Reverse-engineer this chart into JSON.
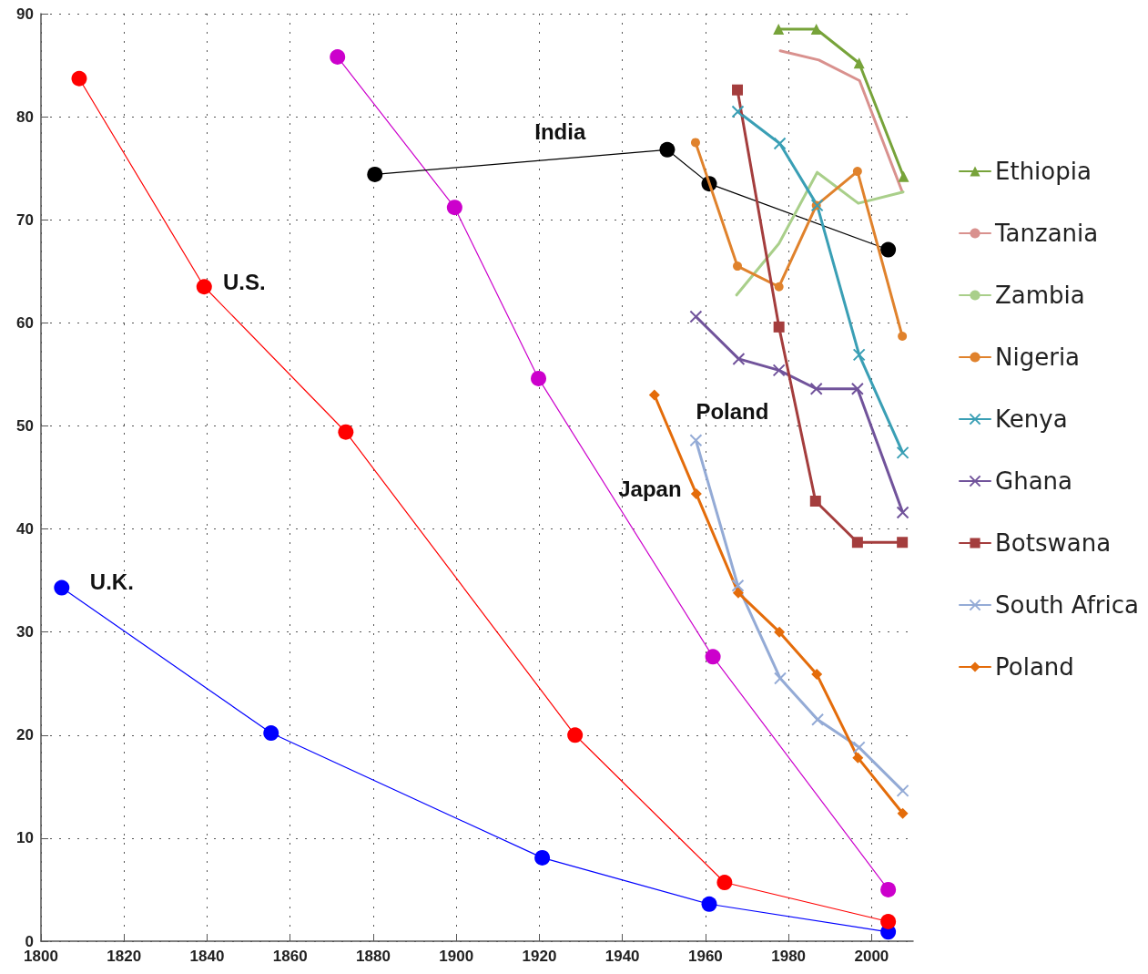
{
  "chart_data": {
    "type": "line",
    "xlim": [
      1800,
      2010
    ],
    "xticks": [
      1800,
      1820,
      1840,
      1860,
      1880,
      1900,
      1920,
      1940,
      1960,
      1980,
      2000
    ],
    "ylim": [
      0,
      90
    ],
    "yticks": [
      0,
      10,
      20,
      30,
      40,
      50,
      60,
      70,
      80,
      90
    ],
    "grid": true,
    "legend": "right",
    "line_style": "solid",
    "annotations": [
      {
        "text": "India",
        "x": 1925,
        "y": 75.9
      },
      {
        "text": "U.S.",
        "x": 1839.3,
        "y": 63.5
      },
      {
        "text": "U.K.",
        "x": 1805,
        "y": 34.3
      },
      {
        "text": "Japan",
        "x": 1957.8,
        "y": 43.4
      },
      {
        "text": "Poland",
        "x": 1957.7,
        "y": 48.6
      }
    ],
    "series": [
      {
        "color": "#0000ff",
        "marker": "circle",
        "x": [
          1805,
          1855.4,
          1920.7,
          1960.9,
          2004
        ],
        "values": [
          34.3,
          20.2,
          8.1,
          3.6,
          0.9
        ]
      },
      {
        "color": "#ff0000",
        "marker": "circle",
        "x": [
          1809.2,
          1839.3,
          1873.4,
          1928.6,
          1964.6,
          2004
        ],
        "values": [
          83.7,
          63.5,
          49.4,
          20.0,
          5.7,
          1.9
        ]
      },
      {
        "color": "#cc00cc",
        "marker": "circle",
        "x": [
          1871.4,
          1899.6,
          1919.8,
          1961.8,
          2004
        ],
        "values": [
          85.8,
          71.2,
          54.6,
          27.6,
          5.0
        ]
      },
      {
        "color": "#000000",
        "marker": "circle",
        "x": [
          1880.4,
          1950.8,
          1960.9,
          2004
        ],
        "values": [
          74.4,
          76.8,
          73.5,
          67.1
        ]
      },
      {
        "name": "Ethiopia",
        "color": "#77a33a",
        "marker": "triangle",
        "x": [
          1977.6,
          1986.7,
          1997,
          2007.7
        ],
        "values": [
          88.5,
          88.5,
          85.2,
          74.2
        ]
      },
      {
        "name": "Tanzania",
        "color": "#d9918e",
        "marker": "none",
        "x": [
          1978,
          1987.3,
          1997.1,
          2007.4
        ],
        "values": [
          86.4,
          85.5,
          83.5,
          72.7
        ]
      },
      {
        "name": "Zambia",
        "color": "#a9cf8a",
        "marker": "none",
        "x": [
          1967.5,
          1977.7,
          1986.9,
          1996.8,
          2007.6
        ],
        "values": [
          62.7,
          67.7,
          74.6,
          71.6,
          72.7
        ]
      },
      {
        "name": "Nigeria",
        "color": "#e0822c",
        "marker": "circle",
        "x": [
          1957.6,
          1967.7,
          1977.7,
          1986.7,
          1996.6,
          2007.4
        ],
        "values": [
          77.5,
          65.5,
          63.5,
          71.4,
          74.7,
          58.7
        ]
      },
      {
        "name": "Kenya",
        "color": "#3a9fb5",
        "marker": "cross",
        "x": [
          1967.8,
          1977.9,
          1986.9,
          1997,
          2007.5
        ],
        "values": [
          80.5,
          77.4,
          71.4,
          56.9,
          47.4
        ]
      },
      {
        "name": "Ghana",
        "color": "#71539b",
        "marker": "cross",
        "x": [
          1957.7,
          1968,
          1977.7,
          1986.7,
          1996.6,
          2007.5
        ],
        "values": [
          60.6,
          56.5,
          55.4,
          53.6,
          53.6,
          41.6
        ]
      },
      {
        "name": "Botswana",
        "color": "#a43d3d",
        "marker": "square",
        "x": [
          1967.7,
          1977.7,
          1986.5,
          1996.6,
          2007.4
        ],
        "values": [
          82.6,
          59.6,
          42.7,
          38.7,
          38.7
        ]
      },
      {
        "name": "South Africa",
        "color": "#94abd6",
        "marker": "cross",
        "x": [
          1957.7,
          1967.8,
          1978,
          1987,
          1997,
          2007.5
        ],
        "values": [
          48.6,
          34.5,
          25.5,
          21.5,
          18.8,
          14.6
        ]
      },
      {
        "name": "Poland",
        "color": "#e46c0a",
        "marker": "diamond",
        "x": [
          1947.7,
          1957.8,
          1967.9,
          1977.8,
          1986.8,
          1996.7,
          2007.5
        ],
        "values": [
          53.0,
          43.4,
          33.8,
          30.0,
          25.9,
          17.8,
          12.4
        ]
      }
    ]
  }
}
